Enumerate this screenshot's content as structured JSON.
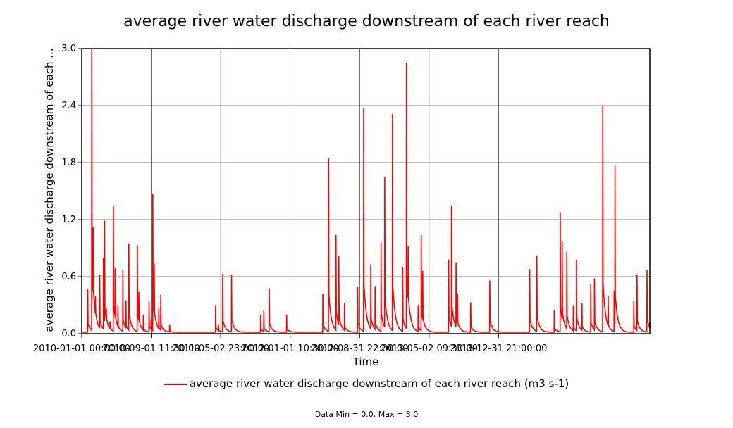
{
  "chart_data": {
    "type": "line",
    "title": "average river water discharge downstream of each river reach",
    "xlabel": "Time",
    "ylabel": "average river water discharge downstream of each ...",
    "ylim": [
      0.0,
      3.0
    ],
    "yticks": [
      "0.0",
      "0.6",
      "1.2",
      "1.8",
      "2.4",
      "3.0"
    ],
    "xticks": [
      "2010-01-01 00:00:00",
      "2010-09-01 11:30:00",
      "2011-05-02 23:00:00",
      "2012-01-01 10:30:00",
      "2012-08-31 22:00:00",
      "2013-05-02 09:30:00",
      "2013-12-31 21:00:00"
    ],
    "grid": true,
    "legend_position": "bottom",
    "color": "#ff0000",
    "series": [
      {
        "name": "average river water discharge downstream of each river reach (m3 s-1)",
        "peaks": [
          {
            "date": "2010-01-22",
            "value": 0.47
          },
          {
            "date": "2010-02-05",
            "value": 3.0
          },
          {
            "date": "2010-02-10",
            "value": 1.12
          },
          {
            "date": "2010-02-18",
            "value": 0.4
          },
          {
            "date": "2010-03-05",
            "value": 0.62
          },
          {
            "date": "2010-03-18",
            "value": 0.8
          },
          {
            "date": "2010-03-22",
            "value": 1.19
          },
          {
            "date": "2010-03-28",
            "value": 0.27
          },
          {
            "date": "2010-04-10",
            "value": 0.13
          },
          {
            "date": "2010-04-22",
            "value": 1.34
          },
          {
            "date": "2010-04-28",
            "value": 0.69
          },
          {
            "date": "2010-05-08",
            "value": 0.3
          },
          {
            "date": "2010-05-25",
            "value": 0.67
          },
          {
            "date": "2010-06-05",
            "value": 0.35
          },
          {
            "date": "2010-06-15",
            "value": 0.95
          },
          {
            "date": "2010-07-15",
            "value": 0.93
          },
          {
            "date": "2010-07-20",
            "value": 0.44
          },
          {
            "date": "2010-08-05",
            "value": 0.2
          },
          {
            "date": "2010-08-25",
            "value": 0.34
          },
          {
            "date": "2010-09-01",
            "value": 0.15
          },
          {
            "date": "2010-09-07",
            "value": 1.47
          },
          {
            "date": "2010-09-12",
            "value": 0.74
          },
          {
            "date": "2010-09-28",
            "value": 0.27
          },
          {
            "date": "2010-10-05",
            "value": 0.41
          },
          {
            "date": "2010-11-05",
            "value": 0.1
          },
          {
            "date": "2011-04-15",
            "value": 0.3
          },
          {
            "date": "2011-04-25",
            "value": 0.1
          },
          {
            "date": "2011-05-10",
            "value": 0.63
          },
          {
            "date": "2011-06-10",
            "value": 0.62
          },
          {
            "date": "2011-09-20",
            "value": 0.2
          },
          {
            "date": "2011-10-01",
            "value": 0.25
          },
          {
            "date": "2011-10-20",
            "value": 0.48
          },
          {
            "date": "2011-12-20",
            "value": 0.2
          },
          {
            "date": "2012-04-25",
            "value": 0.42
          },
          {
            "date": "2012-05-15",
            "value": 1.85
          },
          {
            "date": "2012-06-10",
            "value": 1.04
          },
          {
            "date": "2012-06-20",
            "value": 0.82
          },
          {
            "date": "2012-07-10",
            "value": 0.32
          },
          {
            "date": "2012-08-25",
            "value": 0.49
          },
          {
            "date": "2012-09-15",
            "value": 2.38
          },
          {
            "date": "2012-10-10",
            "value": 0.73
          },
          {
            "date": "2012-10-25",
            "value": 0.5
          },
          {
            "date": "2012-11-15",
            "value": 0.96
          },
          {
            "date": "2012-11-28",
            "value": 1.65
          },
          {
            "date": "2012-12-25",
            "value": 2.31
          },
          {
            "date": "2013-01-30",
            "value": 0.7
          },
          {
            "date": "2013-02-12",
            "value": 2.85
          },
          {
            "date": "2013-02-18",
            "value": 0.92
          },
          {
            "date": "2013-03-25",
            "value": 0.3
          },
          {
            "date": "2013-04-05",
            "value": 1.04
          },
          {
            "date": "2013-04-10",
            "value": 0.66
          },
          {
            "date": "2013-07-10",
            "value": 0.78
          },
          {
            "date": "2013-07-20",
            "value": 1.35
          },
          {
            "date": "2013-08-05",
            "value": 0.75
          },
          {
            "date": "2013-08-10",
            "value": 0.42
          },
          {
            "date": "2013-09-25",
            "value": 0.33
          },
          {
            "date": "2013-12-01",
            "value": 0.56
          },
          {
            "date": "2014-04-20",
            "value": 0.68
          },
          {
            "date": "2014-05-15",
            "value": 0.82
          },
          {
            "date": "2014-07-15",
            "value": 0.25
          },
          {
            "date": "2014-08-05",
            "value": 1.28
          },
          {
            "date": "2014-08-12",
            "value": 0.97
          },
          {
            "date": "2014-08-28",
            "value": 0.86
          },
          {
            "date": "2014-09-20",
            "value": 0.3
          },
          {
            "date": "2014-10-01",
            "value": 0.78
          },
          {
            "date": "2014-10-20",
            "value": 0.32
          },
          {
            "date": "2014-11-20",
            "value": 0.52
          },
          {
            "date": "2014-12-03",
            "value": 0.58
          },
          {
            "date": "2015-01-01",
            "value": 2.4
          },
          {
            "date": "2015-01-20",
            "value": 0.4
          },
          {
            "date": "2015-02-10",
            "value": 0.45
          },
          {
            "date": "2015-02-13",
            "value": 1.77
          },
          {
            "date": "2015-04-20",
            "value": 0.35
          },
          {
            "date": "2015-05-01",
            "value": 0.62
          },
          {
            "date": "2015-06-05",
            "value": 0.67
          },
          {
            "date": "2015-06-15",
            "value": 0.12
          }
        ]
      }
    ],
    "footer": "Data Min = 0.0, Max = 3.0"
  }
}
